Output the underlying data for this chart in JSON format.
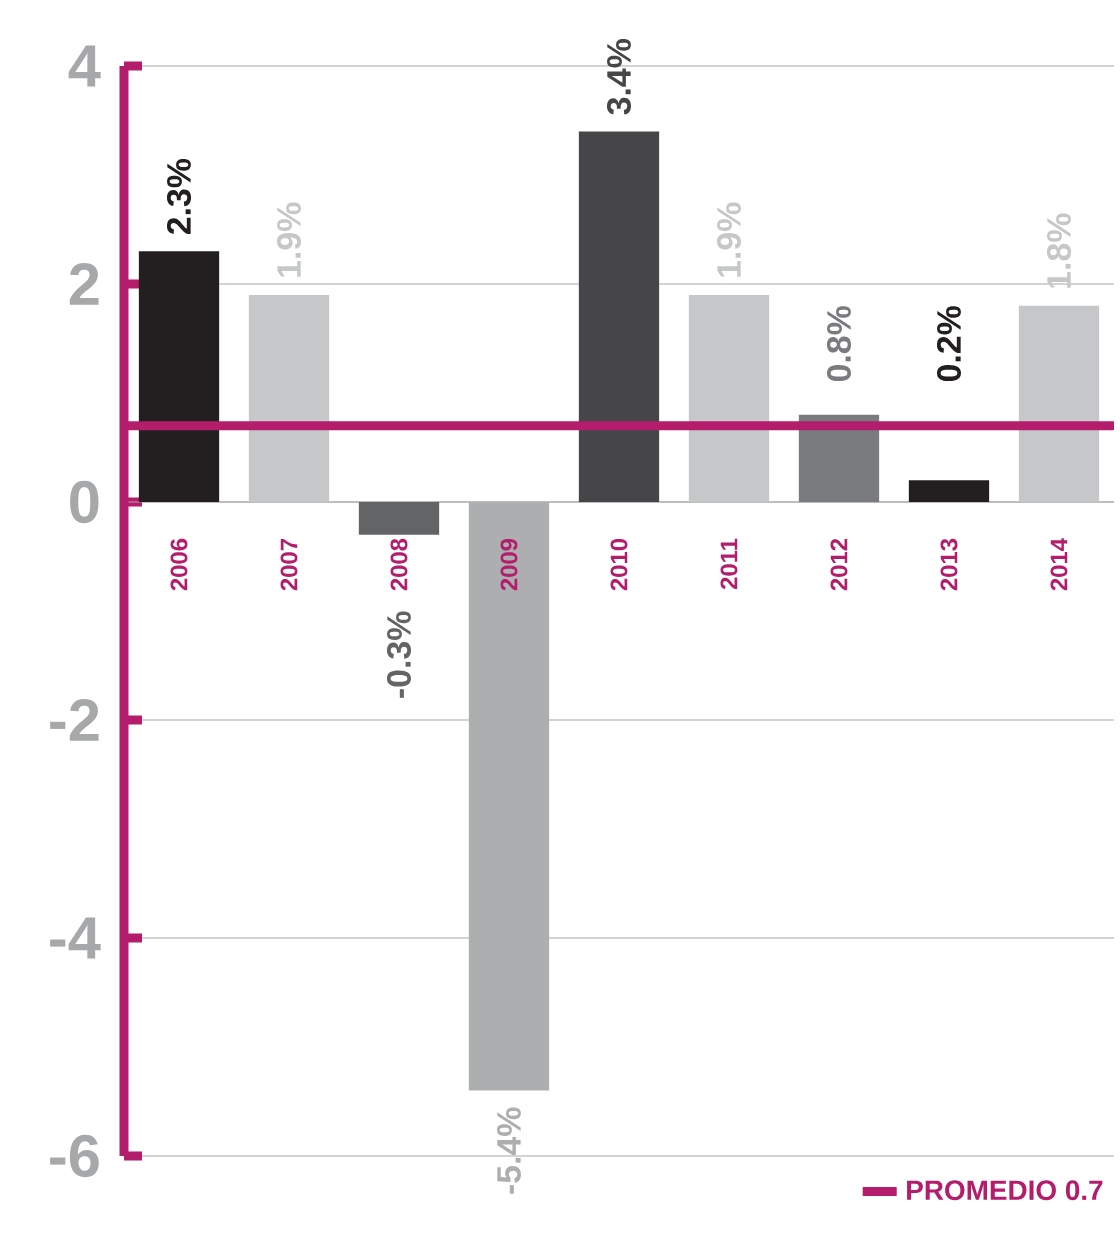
{
  "chart_data": {
    "type": "bar",
    "categories": [
      "2006",
      "2007",
      "2008",
      "2009",
      "2010",
      "2011",
      "2012",
      "2013",
      "2014"
    ],
    "values": [
      2.3,
      1.9,
      -0.3,
      -5.4,
      3.4,
      1.9,
      0.8,
      0.2,
      1.8
    ],
    "colors": [
      "#231f20",
      "#c6c7c9",
      "#636466",
      "#adaeb0",
      "#464648",
      "#c6c7c9",
      "#7a7b7e",
      "#231f20",
      "#c6c7c9"
    ],
    "value_labels": [
      "2.3%",
      "1.9%",
      "-0.3%",
      "-5.4%",
      "3.4%",
      "1.9%",
      "0.8%",
      "0.2%",
      "1.8%"
    ],
    "ylim": [
      -6,
      4
    ],
    "yticks": [
      -6,
      -4,
      -2,
      0,
      2,
      4
    ],
    "grid": "y",
    "legend": "bottom right",
    "ref_lines": [
      {
        "axis": "y",
        "value": 0.7,
        "label": "PROMEDIO 0.7",
        "color": "#b31d6c"
      }
    ]
  }
}
